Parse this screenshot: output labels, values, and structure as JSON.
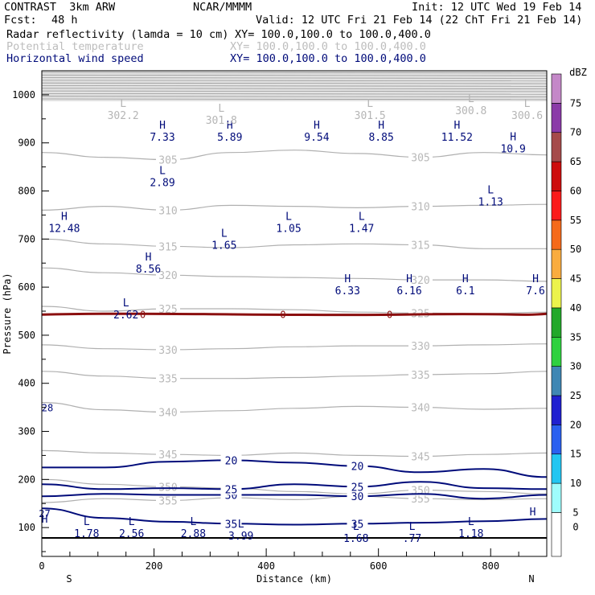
{
  "header": {
    "model": "CONTRAST  3km ARW",
    "org": "NCAR/MMMM",
    "init": "Init: 12 UTC Wed 19 Feb 14",
    "fcst_label": "Fcst:",
    "fcst_value": "48 h",
    "valid": "Valid: 12 UTC Fri 21 Feb 14 (22 ChT Fri 21 Feb 14)",
    "fields": [
      {
        "name": "Radar reflectivity (lamda = 10 cm)",
        "xy": "XY= 100.0,100.0 to 100.0,400.0",
        "style": "black"
      },
      {
        "name": "Potential temperature",
        "xy": "XY= 100.0,100.0 to 100.0,400.0",
        "style": "gray"
      },
      {
        "name": "Horizontal wind speed",
        "xy": "XY= 100.0,100.0 to 100.0,400.0",
        "style": "navy"
      }
    ]
  },
  "chart_data": {
    "type": "cross-section",
    "xlabel": "Distance (km)",
    "ylabel": "Pressure (hPa)",
    "xlim": [
      0,
      900
    ],
    "ylim": [
      1050,
      40
    ],
    "x_ticks": [
      "0",
      "200",
      "400",
      "600",
      "800"
    ],
    "y_ticks": [
      "100",
      "200",
      "300",
      "400",
      "500",
      "600",
      "700",
      "800",
      "900",
      "1000"
    ],
    "x_ends": {
      "left": "S",
      "right": "N"
    },
    "colorbar": {
      "unit": "dBZ",
      "levels": [
        "0",
        "5",
        "10",
        "15",
        "20",
        "25",
        "30",
        "35",
        "40",
        "45",
        "50",
        "55",
        "60",
        "65",
        "70",
        "75"
      ],
      "colors": [
        "#ffffff",
        "#9ffcfc",
        "#22c6f2",
        "#2a60f0",
        "#2020d0",
        "#3f87b4",
        "#2ed13f",
        "#22a82a",
        "#ecf34c",
        "#f9ac3f",
        "#f56a1a",
        "#fb1a1a",
        "#cd0c0c",
        "#a54a4a",
        "#8b3aa8",
        "#c488c8"
      ]
    },
    "theta_contours": [
      {
        "label": "355",
        "p": [
          152,
          160,
          156,
          162,
          158,
          165,
          160,
          158,
          160
        ]
      },
      {
        "label": "350",
        "p": [
          200,
          190,
          185,
          182,
          175,
          170,
          178,
          175,
          170
        ]
      },
      {
        "label": "345",
        "p": [
          260,
          255,
          252,
          250,
          255,
          250,
          248,
          252,
          255
        ]
      },
      {
        "label": "340",
        "p": [
          360,
          345,
          340,
          343,
          348,
          352,
          350,
          346,
          348
        ]
      },
      {
        "label": "335",
        "p": [
          425,
          415,
          410,
          410,
          412,
          415,
          418,
          420,
          425
        ]
      },
      {
        "label": "330",
        "p": [
          480,
          472,
          470,
          472,
          476,
          478,
          478,
          480,
          482
        ]
      },
      {
        "label": "325",
        "p": [
          560,
          550,
          555,
          555,
          553,
          548,
          546,
          545,
          548
        ]
      },
      {
        "label": "320",
        "p": [
          640,
          630,
          625,
          622,
          620,
          618,
          615,
          615,
          612
        ]
      },
      {
        "label": "315",
        "p": [
          700,
          690,
          685,
          682,
          688,
          690,
          688,
          680,
          680
        ]
      },
      {
        "label": "310",
        "p": [
          760,
          768,
          760,
          770,
          768,
          765,
          768,
          770,
          772
        ]
      },
      {
        "label": "305",
        "p": [
          880,
          870,
          865,
          880,
          885,
          878,
          870,
          880,
          875
        ]
      }
    ],
    "wind_contours": [
      {
        "label": "35",
        "p": [
          140,
          120,
          112,
          108,
          106,
          108,
          110,
          113,
          118
        ]
      },
      {
        "label": "30",
        "p": [
          165,
          170,
          168,
          168,
          168,
          165,
          170,
          160,
          168
        ]
      },
      {
        "label": "25",
        "p": [
          190,
          180,
          182,
          180,
          190,
          185,
          195,
          182,
          180
        ]
      },
      {
        "label": "20",
        "p": [
          225,
          225,
          237,
          240,
          235,
          228,
          215,
          222,
          205
        ]
      }
    ],
    "zero_line_p": 543,
    "annotations": [
      {
        "mark": "L",
        "value": "1.78",
        "x": 80,
        "p": 105,
        "color": "navy"
      },
      {
        "mark": "L",
        "value": "2.56",
        "x": 160,
        "p": 105,
        "color": "navy"
      },
      {
        "mark": "L",
        "value": "2.88",
        "x": 270,
        "p": 105,
        "color": "navy"
      },
      {
        "mark": "L",
        "value": "3.99",
        "x": 355,
        "p": 100,
        "color": "navy"
      },
      {
        "mark": "L",
        "value": "1.68",
        "x": 560,
        "p": 95,
        "color": "navy"
      },
      {
        "mark": "L",
        "value": ".77",
        "x": 660,
        "p": 95,
        "color": "navy"
      },
      {
        "mark": "L",
        "value": "1.18",
        "x": 765,
        "p": 105,
        "color": "navy"
      },
      {
        "mark": "H",
        "value": "",
        "x": 5,
        "p": 110,
        "color": "navy"
      },
      {
        "mark": "H",
        "value": "",
        "x": 875,
        "p": 125,
        "color": "navy"
      },
      {
        "mark": "L",
        "value": "2.62",
        "x": 150,
        "p": 560,
        "color": "navy"
      },
      {
        "mark": "H",
        "value": "6.33",
        "x": 545,
        "p": 610,
        "color": "navy"
      },
      {
        "mark": "H",
        "value": "6.16",
        "x": 655,
        "p": 610,
        "color": "navy"
      },
      {
        "mark": "H",
        "value": "6.1",
        "x": 755,
        "p": 610,
        "color": "navy"
      },
      {
        "mark": "H",
        "value": "7.6",
        "x": 880,
        "p": 610,
        "color": "navy"
      },
      {
        "mark": "H",
        "value": "8.56",
        "x": 190,
        "p": 655,
        "color": "navy"
      },
      {
        "mark": "L",
        "value": "1.65",
        "x": 325,
        "p": 705,
        "color": "navy"
      },
      {
        "mark": "H",
        "value": "12.48",
        "x": 40,
        "p": 740,
        "color": "navy"
      },
      {
        "mark": "L",
        "value": "1.05",
        "x": 440,
        "p": 740,
        "color": "navy"
      },
      {
        "mark": "L",
        "value": "1.47",
        "x": 570,
        "p": 740,
        "color": "navy"
      },
      {
        "mark": "L",
        "value": "1.13",
        "x": 800,
        "p": 795,
        "color": "navy"
      },
      {
        "mark": "L",
        "value": "2.89",
        "x": 215,
        "p": 835,
        "color": "navy"
      },
      {
        "mark": "H",
        "value": "7.33",
        "x": 215,
        "p": 930,
        "color": "navy"
      },
      {
        "mark": "H",
        "value": "5.89",
        "x": 335,
        "p": 930,
        "color": "navy"
      },
      {
        "mark": "H",
        "value": "9.54",
        "x": 490,
        "p": 930,
        "color": "navy"
      },
      {
        "mark": "H",
        "value": "8.85",
        "x": 605,
        "p": 930,
        "color": "navy"
      },
      {
        "mark": "H",
        "value": "11.52",
        "x": 740,
        "p": 930,
        "color": "navy"
      },
      {
        "mark": "H",
        "value": "10.9",
        "x": 840,
        "p": 905,
        "color": "navy"
      },
      {
        "mark": "L",
        "value": "302.2",
        "x": 145,
        "p": 975,
        "color": "gray"
      },
      {
        "mark": "L",
        "value": "301.8",
        "x": 320,
        "p": 965,
        "color": "gray"
      },
      {
        "mark": "L",
        "value": "301.5",
        "x": 585,
        "p": 975,
        "color": "gray"
      },
      {
        "mark": "L",
        "value": "300.8",
        "x": 765,
        "p": 985,
        "color": "gray"
      },
      {
        "mark": "L",
        "value": "300.6",
        "x": 865,
        "p": 975,
        "color": "gray"
      },
      {
        "mark": "",
        "value": "27",
        "x": 5,
        "p": 130,
        "color": "navy"
      },
      {
        "mark": "",
        "value": "28",
        "x": 10,
        "p": 350,
        "color": "navy"
      },
      {
        "mark": "",
        "value": "0",
        "x": 180,
        "p": 544,
        "color": "red"
      },
      {
        "mark": "",
        "value": "0",
        "x": 430,
        "p": 544,
        "color": "red"
      },
      {
        "mark": "",
        "value": "0",
        "x": 620,
        "p": 544,
        "color": "red"
      }
    ]
  }
}
